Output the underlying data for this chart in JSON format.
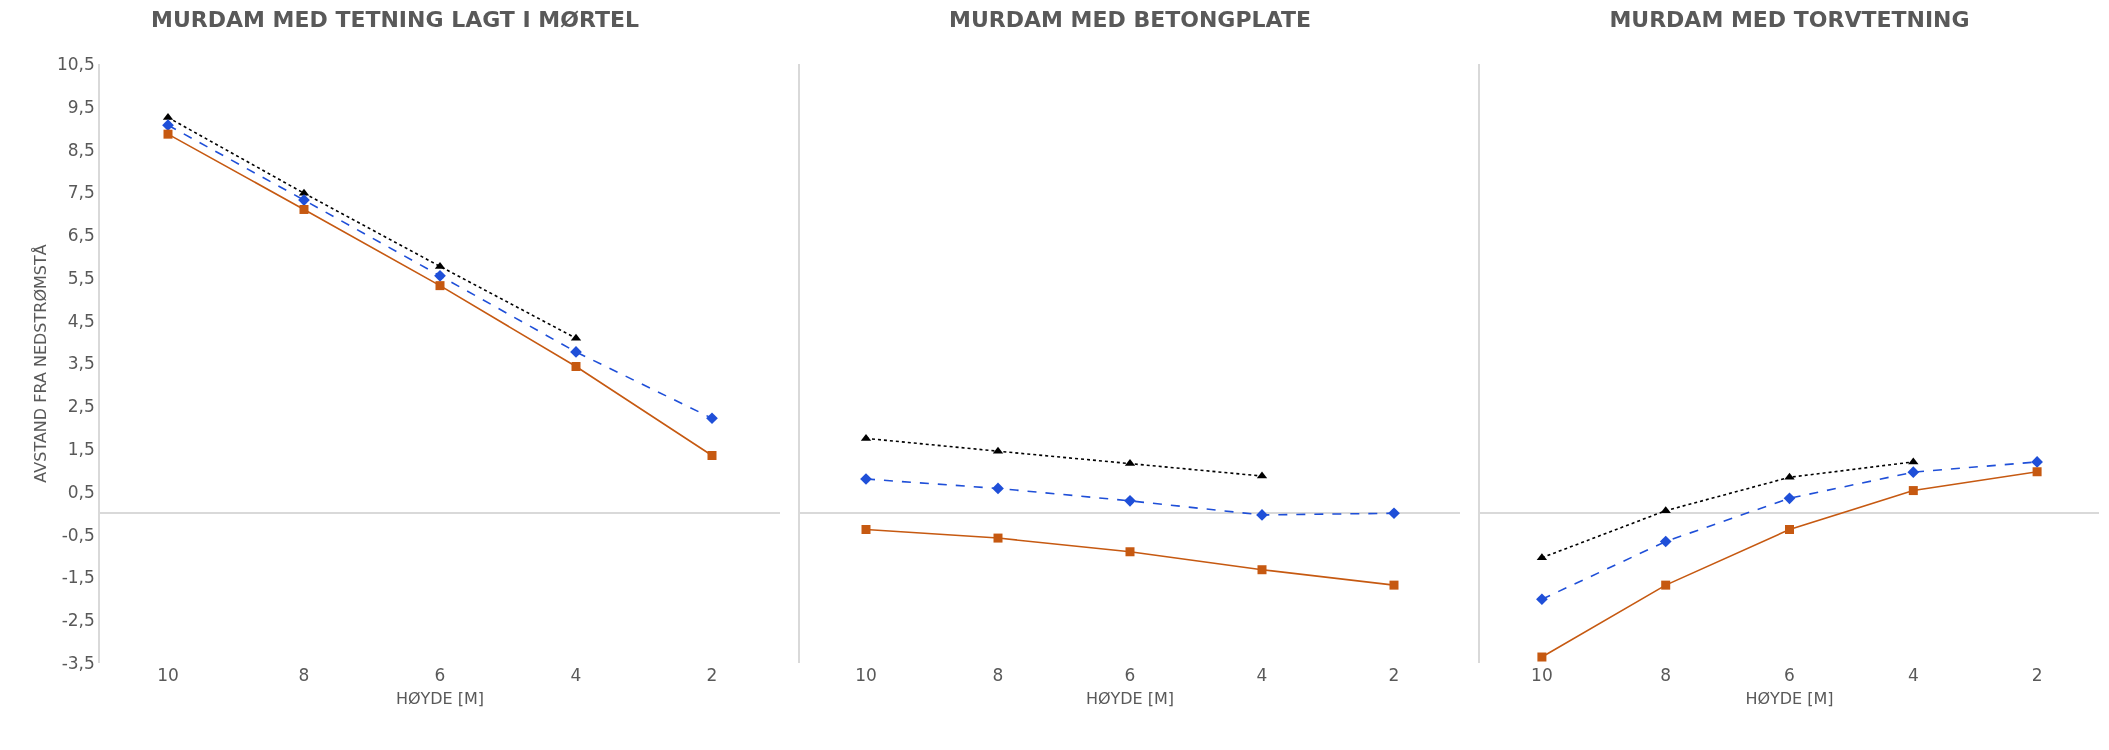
{
  "chart_data": [
    {
      "type": "line",
      "title": "MURDAM MED TETNING LAGT I MØRTEL",
      "xlabel": "HØYDE [M]",
      "ylabel": "AVSTAND FRA NEDSTRØMSTÅ",
      "categories": [
        "10",
        "8",
        "6",
        "4",
        "2"
      ],
      "ylim": [
        -3.5,
        10.5
      ],
      "yticks": [
        {
          "value": -3.5,
          "label": "-3,5"
        },
        {
          "value": -2.5,
          "label": "-2,5"
        },
        {
          "value": -1.5,
          "label": "-1,5"
        },
        {
          "value": -0.5,
          "label": "-0,5"
        },
        {
          "value": 0.5,
          "label": "0,5"
        },
        {
          "value": 1.5,
          "label": "1,5"
        },
        {
          "value": 2.5,
          "label": "2,5"
        },
        {
          "value": 3.5,
          "label": "3,5"
        },
        {
          "value": 4.5,
          "label": "4,5"
        },
        {
          "value": 5.5,
          "label": "5,5"
        },
        {
          "value": 6.5,
          "label": "6,5"
        },
        {
          "value": 7.5,
          "label": "7,5"
        },
        {
          "value": 8.5,
          "label": "8,5"
        },
        {
          "value": 9.5,
          "label": "9,5"
        },
        {
          "value": 10.5,
          "label": "10,5"
        }
      ],
      "grid": false,
      "series": [
        {
          "color": "#000000",
          "marker": "triangle",
          "line_style": "dotted",
          "values": [
            9.25,
            7.48,
            5.77,
            4.09,
            null
          ]
        },
        {
          "color": "#1f4fd8",
          "marker": "diamond",
          "line_style": "dashed",
          "values": [
            9.07,
            7.32,
            5.55,
            3.77,
            2.22
          ]
        },
        {
          "color": "#c65911",
          "marker": "square",
          "line_style": "solid",
          "values": [
            8.86,
            7.1,
            5.32,
            3.43,
            1.35
          ]
        }
      ]
    },
    {
      "type": "line",
      "title": "MURDAM MED BETONGPLATE",
      "xlabel": "HØYDE [M]",
      "categories": [
        "10",
        "8",
        "6",
        "4",
        "2"
      ],
      "tick_labels": "x",
      "ylim": [
        -3.5,
        10.5
      ],
      "grid": false,
      "series": [
        {
          "color": "#000000",
          "marker": "triangle",
          "line_style": "dotted",
          "values": [
            1.75,
            1.45,
            1.16,
            0.87,
            null
          ]
        },
        {
          "color": "#1f4fd8",
          "marker": "diamond",
          "line_style": "dashed",
          "values": [
            0.8,
            0.58,
            0.29,
            -0.04,
            0.0
          ]
        },
        {
          "color": "#c65911",
          "marker": "square",
          "line_style": "solid",
          "values": [
            -0.38,
            -0.58,
            -0.9,
            -1.32,
            -1.68
          ]
        }
      ]
    },
    {
      "type": "line",
      "title": "MURDAM MED TORVTETNING",
      "xlabel": "HØYDE [M]",
      "categories": [
        "10",
        "8",
        "6",
        "4",
        "2"
      ],
      "tick_labels": "x",
      "ylim": [
        -3.5,
        10.5
      ],
      "grid": false,
      "series": [
        {
          "color": "#000000",
          "marker": "triangle",
          "line_style": "dotted",
          "values": [
            -1.04,
            0.06,
            0.84,
            1.2,
            null
          ]
        },
        {
          "color": "#1f4fd8",
          "marker": "diamond",
          "line_style": "dashed",
          "values": [
            -2.01,
            -0.66,
            0.35,
            0.96,
            1.2
          ]
        },
        {
          "color": "#c65911",
          "marker": "square",
          "line_style": "solid",
          "values": [
            -3.36,
            -1.68,
            -0.38,
            0.53,
            0.97
          ]
        }
      ]
    }
  ]
}
